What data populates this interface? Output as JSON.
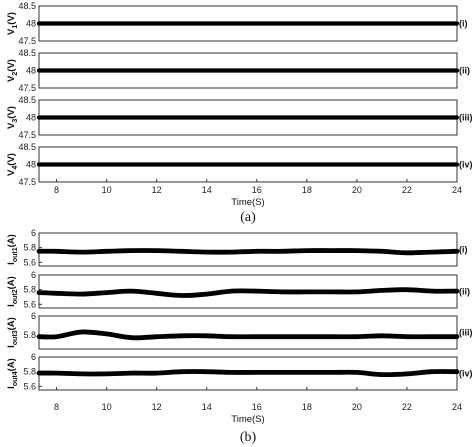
{
  "chart_data": [
    {
      "type": "line",
      "caption": "(a)",
      "xlabel": "Time(S)",
      "xlim": [
        7.3,
        24
      ],
      "xticks": [
        8,
        10,
        12,
        14,
        16,
        18,
        20,
        22,
        24
      ],
      "panels": [
        {
          "ylabel_main": "V",
          "ylabel_sub": "1",
          "ylabel_unit": "(V)",
          "tag": "(i)",
          "ylim": [
            47.5,
            48.5
          ],
          "yticks": [
            "48.5",
            "48",
            "47.5"
          ],
          "x": [
            7.3,
            24
          ],
          "values": [
            48.0,
            48.0
          ]
        },
        {
          "ylabel_main": "V",
          "ylabel_sub": "2",
          "ylabel_unit": "(V)",
          "tag": "(ii)",
          "ylim": [
            47.5,
            48.5
          ],
          "yticks": [
            "48.5",
            "48",
            "47.5"
          ],
          "x": [
            7.3,
            24
          ],
          "values": [
            48.0,
            48.0
          ]
        },
        {
          "ylabel_main": "V",
          "ylabel_sub": "3",
          "ylabel_unit": "(V)",
          "tag": "(iii)",
          "ylim": [
            47.5,
            48.5
          ],
          "yticks": [
            "48.5",
            "48",
            "47.5"
          ],
          "x": [
            7.3,
            24
          ],
          "values": [
            48.0,
            48.0
          ]
        },
        {
          "ylabel_main": "V",
          "ylabel_sub": "4",
          "ylabel_unit": "(V)",
          "tag": "(iv)",
          "ylim": [
            47.5,
            48.5
          ],
          "yticks": [
            "48.5",
            "48",
            "47.5"
          ],
          "x": [
            7.3,
            24
          ],
          "values": [
            48.0,
            48.0
          ]
        }
      ]
    },
    {
      "type": "line",
      "caption": "(b)",
      "xlabel": "Time(S)",
      "xlim": [
        7.3,
        24
      ],
      "xticks": [
        8,
        10,
        12,
        14,
        16,
        18,
        20,
        22,
        24
      ],
      "panels": [
        {
          "ylabel_main": "I",
          "ylabel_sub": "out1",
          "ylabel_unit": "(A)",
          "tag": "(i)",
          "ylim": [
            5.55,
            6.0
          ],
          "yticks": [
            "6",
            "5.8",
            "5.6"
          ],
          "x": [
            7.3,
            8,
            9,
            10,
            11,
            12,
            13,
            14,
            15,
            16,
            17,
            18,
            19,
            20,
            21,
            22,
            23,
            24
          ],
          "values": [
            5.75,
            5.75,
            5.74,
            5.75,
            5.76,
            5.76,
            5.75,
            5.74,
            5.74,
            5.75,
            5.75,
            5.76,
            5.76,
            5.76,
            5.75,
            5.73,
            5.74,
            5.75
          ]
        },
        {
          "ylabel_main": "I",
          "ylabel_sub": "out2",
          "ylabel_unit": "(A)",
          "tag": "(ii)",
          "ylim": [
            5.55,
            6.0
          ],
          "yticks": [
            "6",
            "5.8",
            "5.6"
          ],
          "x": [
            7.3,
            8,
            9,
            10,
            11,
            12,
            13,
            14,
            15,
            16,
            17,
            18,
            19,
            20,
            21,
            22,
            23,
            24
          ],
          "values": [
            5.76,
            5.75,
            5.74,
            5.76,
            5.78,
            5.75,
            5.72,
            5.74,
            5.78,
            5.78,
            5.77,
            5.77,
            5.77,
            5.77,
            5.79,
            5.8,
            5.78,
            5.78
          ]
        },
        {
          "ylabel_main": "I",
          "ylabel_sub": "out3",
          "ylabel_unit": "(A)",
          "tag": "(iii)",
          "ylim": [
            5.65,
            6.0
          ],
          "yticks": [
            "6",
            "5.8"
          ],
          "x": [
            7.3,
            8,
            9,
            10,
            11,
            12,
            13,
            14,
            15,
            16,
            17,
            18,
            19,
            20,
            21,
            22,
            23,
            24
          ],
          "values": [
            5.78,
            5.78,
            5.83,
            5.81,
            5.77,
            5.78,
            5.79,
            5.79,
            5.78,
            5.78,
            5.78,
            5.78,
            5.78,
            5.78,
            5.79,
            5.78,
            5.78,
            5.78
          ]
        },
        {
          "ylabel_main": "I",
          "ylabel_sub": "out4",
          "ylabel_unit": "(A)",
          "tag": "(iv)",
          "ylim": [
            5.55,
            6.0
          ],
          "yticks": [
            "6",
            "5.8",
            "5.6"
          ],
          "x": [
            7.3,
            8,
            9,
            10,
            11,
            12,
            13,
            14,
            15,
            16,
            17,
            18,
            19,
            20,
            21,
            22,
            23,
            24
          ],
          "values": [
            5.78,
            5.78,
            5.77,
            5.77,
            5.78,
            5.78,
            5.8,
            5.8,
            5.79,
            5.79,
            5.79,
            5.79,
            5.79,
            5.79,
            5.76,
            5.77,
            5.8,
            5.8
          ]
        }
      ]
    }
  ]
}
